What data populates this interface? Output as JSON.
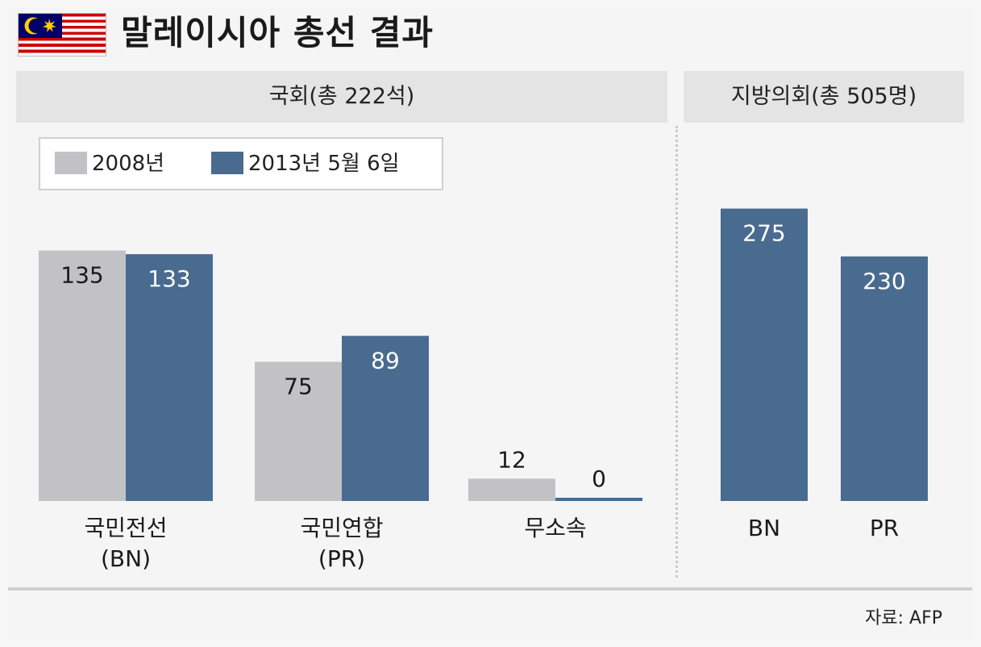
{
  "title": "말레이시아 총선 결과",
  "source": "자료: AFP",
  "colors": {
    "y2008": "#c2c2c6",
    "y2013": "#4a6b90"
  },
  "chart_data": [
    {
      "type": "bar",
      "title": "국회(총 222석)",
      "categories": [
        "국민전선\n(BN)",
        "국민연합\n(PR)",
        "무소속"
      ],
      "series": [
        {
          "name": "2008년",
          "values": [
            135,
            75,
            12
          ]
        },
        {
          "name": "2013년 5월 6일",
          "values": [
            133,
            89,
            0
          ]
        }
      ],
      "ylim": [
        0,
        140
      ],
      "legend": "top-left",
      "grid": false
    },
    {
      "type": "bar",
      "title": "지방의회(총 505명)",
      "categories": [
        "BN",
        "PR"
      ],
      "series": [
        {
          "name": "2013년 5월 6일",
          "values": [
            275,
            230
          ]
        }
      ],
      "ylim": [
        0,
        310
      ],
      "grid": false
    }
  ]
}
